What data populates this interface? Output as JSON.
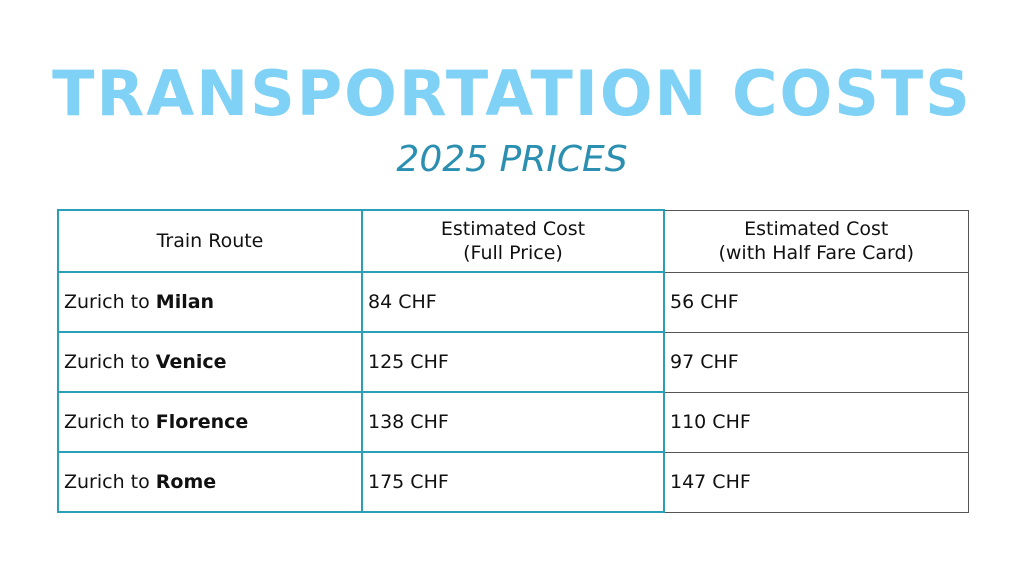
{
  "title": "TRANSPORTATION COSTS",
  "subtitle": "2025 PRICES",
  "table": {
    "headers": {
      "route": "Train Route",
      "full_line1": "Estimated Cost",
      "full_line2": "(Full Price)",
      "half_line1": "Estimated Cost",
      "half_line2": "(with Half Fare Card)"
    },
    "rows": [
      {
        "prefix": "Zurich to ",
        "city": "Milan",
        "full": "84 CHF",
        "half": "56 CHF"
      },
      {
        "prefix": "Zurich to ",
        "city": "Venice",
        "full": "125 CHF",
        "half": "97 CHF"
      },
      {
        "prefix": "Zurich to ",
        "city": "Florence",
        "full": "138 CHF",
        "half": "110 CHF"
      },
      {
        "prefix": "Zurich to ",
        "city": "Rome",
        "full": "175 CHF",
        "half": "147 CHF"
      }
    ]
  },
  "colors": {
    "title": "#7fd1f5",
    "subtitle": "#2a8fb0",
    "table_accent_border": "#2a9fb6"
  }
}
